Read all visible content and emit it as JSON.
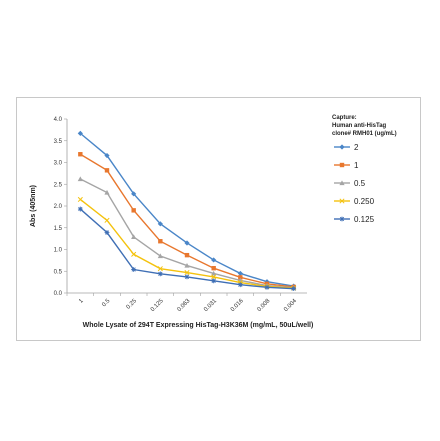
{
  "chart_data": {
    "type": "line",
    "xlabel": "Whole Lysate of 294T Expressing HisTag-H3K36M (mg/mL, 50uL/well)",
    "ylabel": "Abs (405nm)",
    "categories": [
      "1",
      "0.5",
      "0.25",
      "0.125",
      "0.063",
      "0.031",
      "0.016",
      "0.008",
      "0.004"
    ],
    "ylim": [
      0,
      4.0
    ],
    "yticks": [
      "0.0",
      "0.5",
      "1.0",
      "1.5",
      "2.0",
      "2.5",
      "3.0",
      "3.5",
      "4.0"
    ],
    "grid": false,
    "legend": {
      "placement": "right",
      "title_lines": [
        "Capture:",
        "Human anti-HisTag",
        "clone# RMH01 (ug/mL)"
      ]
    },
    "series": [
      {
        "name": "2",
        "color": "#4a86c8",
        "marker": "diamond",
        "values": [
          3.67,
          3.16,
          2.28,
          1.59,
          1.15,
          0.76,
          0.45,
          0.26,
          0.16
        ]
      },
      {
        "name": "1",
        "color": "#e8772e",
        "marker": "square",
        "values": [
          3.19,
          2.82,
          1.9,
          1.19,
          0.87,
          0.57,
          0.36,
          0.21,
          0.14
        ]
      },
      {
        "name": "0.5",
        "color": "#a5a5a5",
        "marker": "triangle",
        "values": [
          2.62,
          2.31,
          1.29,
          0.85,
          0.63,
          0.45,
          0.29,
          0.17,
          0.12
        ]
      },
      {
        "name": "0.250",
        "color": "#f4c20d",
        "marker": "x",
        "values": [
          2.15,
          1.67,
          0.89,
          0.56,
          0.47,
          0.37,
          0.24,
          0.15,
          0.11
        ]
      },
      {
        "name": "0.125",
        "color": "#3f6fb5",
        "marker": "star",
        "values": [
          1.93,
          1.39,
          0.54,
          0.44,
          0.37,
          0.28,
          0.19,
          0.13,
          0.1
        ]
      }
    ]
  }
}
